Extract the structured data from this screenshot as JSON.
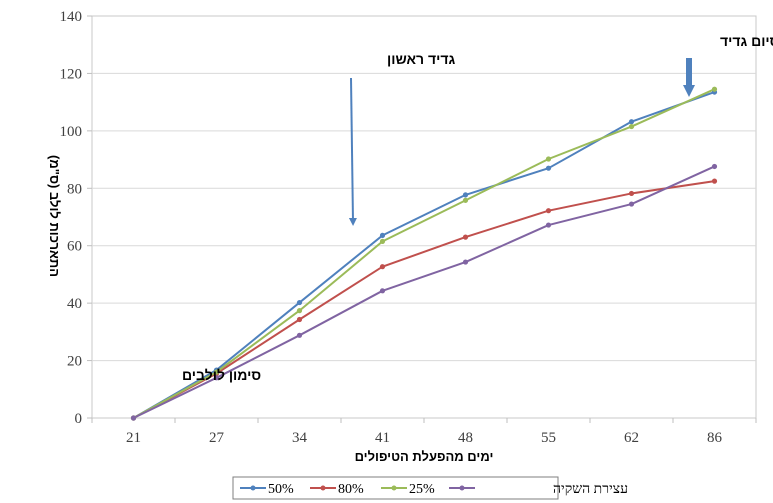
{
  "chart_data": {
    "type": "line",
    "title": "",
    "xlabel": "ימים מהפעלת הטיפולים",
    "ylabel": "התארכות לולב (ס\"מ)",
    "categories": [
      "21",
      "27",
      "34",
      "41",
      "48",
      "55",
      "62",
      "86"
    ],
    "ylim": [
      0,
      140
    ],
    "yticks": [
      0,
      20,
      40,
      60,
      80,
      100,
      120,
      140
    ],
    "grid": true,
    "legend_position": "bottom",
    "series": [
      {
        "name": "50%",
        "color": "#4F81BD",
        "values": [
          0,
          16.7,
          40.2,
          63.6,
          77.7,
          87.0,
          103.2,
          113.5
        ]
      },
      {
        "name": "80%",
        "color": "#C0504D",
        "values": [
          0,
          15.5,
          34.3,
          52.7,
          63.0,
          72.2,
          78.2,
          82.5
        ]
      },
      {
        "name": "25%",
        "color": "#9BBB59",
        "values": [
          0,
          16.0,
          37.4,
          61.5,
          75.8,
          90.2,
          101.5,
          114.5
        ]
      },
      {
        "name": "עצירת השקיה",
        "color": "#8064A2",
        "values": [
          0,
          14.0,
          28.8,
          44.3,
          54.3,
          67.2,
          74.5,
          87.6
        ]
      }
    ],
    "annotations": [
      {
        "text": "גדיד ראשון",
        "arrow_color": "#4F81BD"
      },
      {
        "text": "סיום גדיד",
        "arrow_color": "#4F81BD"
      },
      {
        "text": "סימון לולבים"
      }
    ]
  }
}
